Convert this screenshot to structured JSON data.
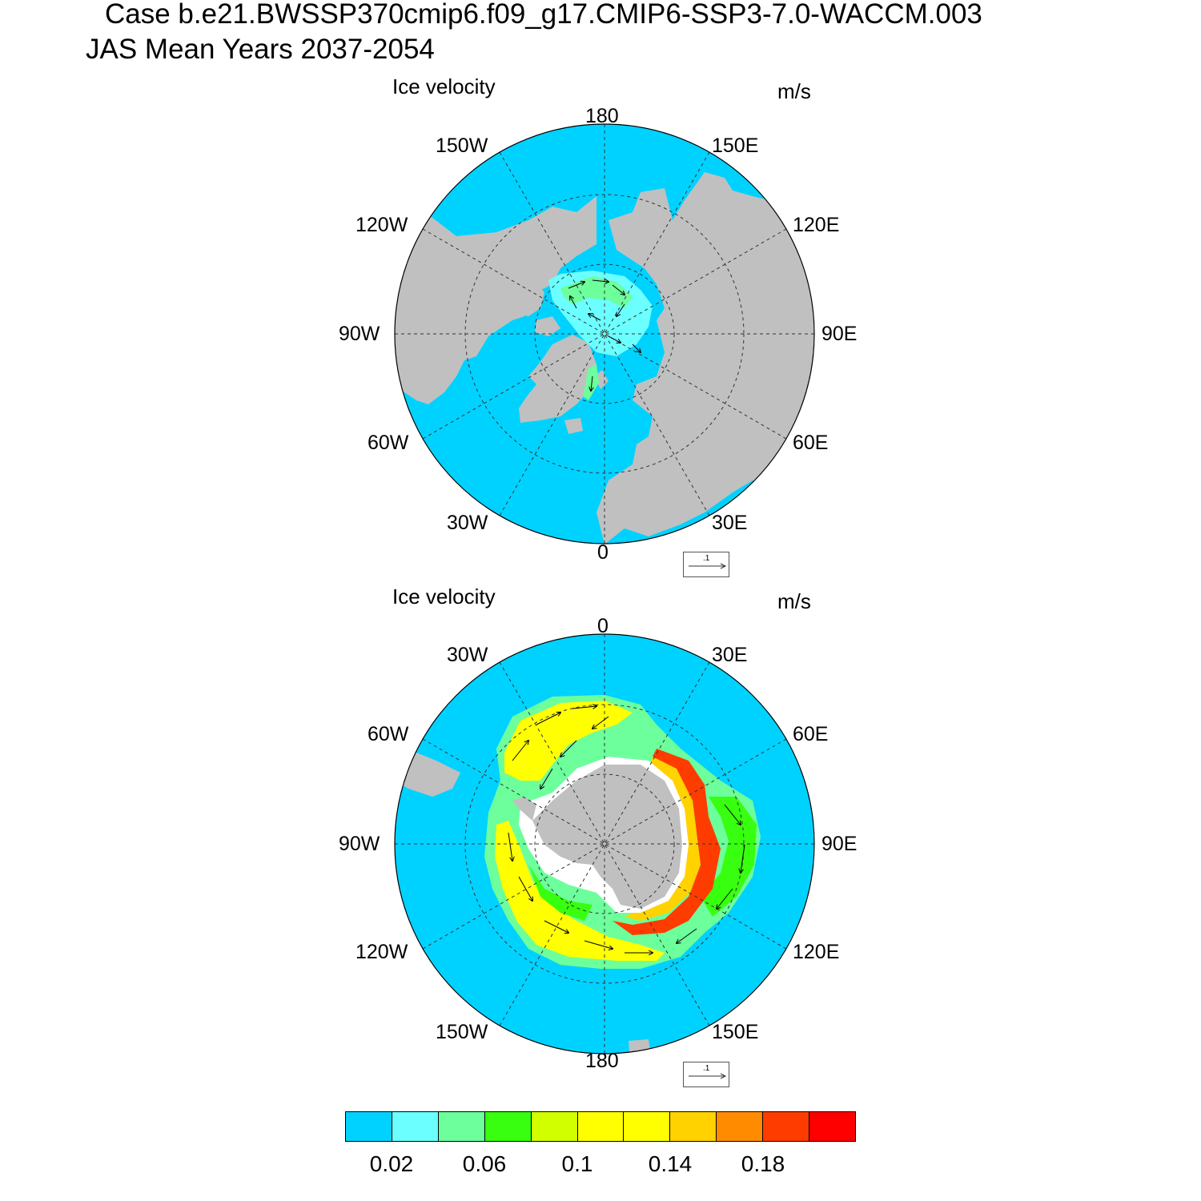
{
  "title": {
    "line1": "Case b.e21.BWSSP370cmip6.f09_g17.CMIP6-SSP3-7.0-WACCM.003",
    "line2": "JAS Mean   Years 2037-2054"
  },
  "maps": [
    {
      "hemisphere": "north",
      "variable": "Ice velocity",
      "units": "m/s",
      "longitude_labels": {
        "top": "180",
        "top_left": "150W",
        "top_right": "150E",
        "upper_left": "120W",
        "upper_right": "120E",
        "left": "90W",
        "right": "90E",
        "lower_left": "60W",
        "lower_right": "60E",
        "bottom_left": "30W",
        "bottom_right": "30E",
        "bottom": "0"
      },
      "reference_vector": ".1"
    },
    {
      "hemisphere": "south",
      "variable": "Ice velocity",
      "units": "m/s",
      "longitude_labels": {
        "top": "0",
        "top_left": "30W",
        "top_right": "30E",
        "upper_left": "60W",
        "upper_right": "60E",
        "left": "90W",
        "right": "90E",
        "lower_left": "120W",
        "lower_right": "120E",
        "bottom_left": "150W",
        "bottom_right": "150E",
        "bottom": "180"
      },
      "reference_vector": ".1"
    }
  ],
  "colors": {
    "ocean": "#00d2ff",
    "land": "#c0c0c0"
  },
  "colorbar": {
    "colors": [
      "#00d2ff",
      "#6cffff",
      "#6cff9c",
      "#38ff0f",
      "#d2ff00",
      "#ffff00",
      "#ffff00",
      "#ffd200",
      "#ff8c00",
      "#ff3c00",
      "#ff0000"
    ],
    "labels": [
      "0.02",
      "0.06",
      "0.1",
      "0.14",
      "0.18"
    ]
  }
}
